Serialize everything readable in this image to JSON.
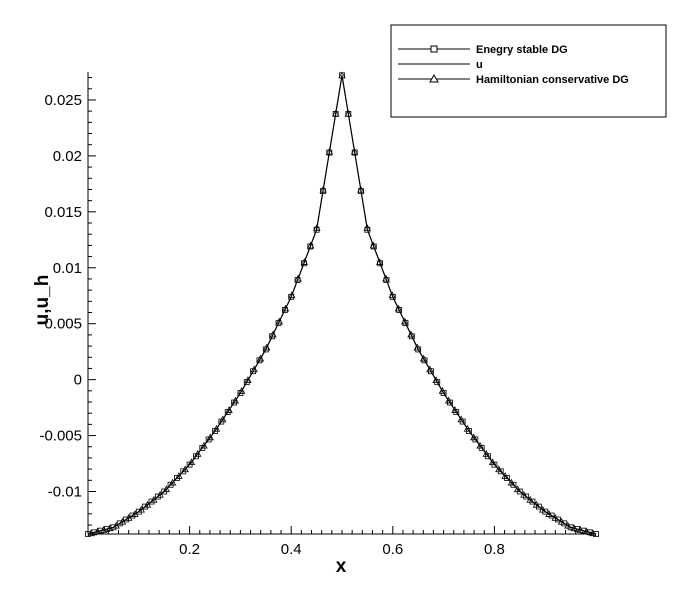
{
  "chart_data": {
    "type": "line",
    "xlabel": "x",
    "ylabel": "u,u_h",
    "xlim": [
      0,
      1
    ],
    "ylim": [
      -0.0138,
      0.0275
    ],
    "x_ticks": [
      {
        "value": 0.2,
        "label": "0.2"
      },
      {
        "value": 0.4,
        "label": "0.4"
      },
      {
        "value": 0.6,
        "label": "0.6"
      },
      {
        "value": 0.8,
        "label": "0.8"
      }
    ],
    "y_ticks": [
      {
        "value": 0.025,
        "label": "0.025"
      },
      {
        "value": 0.02,
        "label": "0.02"
      },
      {
        "value": 0.015,
        "label": "0.015"
      },
      {
        "value": 0.01,
        "label": "0.01"
      },
      {
        "value": 0.005,
        "label": "0.005"
      },
      {
        "value": 0,
        "label": "0"
      },
      {
        "value": -0.005,
        "label": "-0.005"
      },
      {
        "value": -0.01,
        "label": "-0.01"
      }
    ],
    "legend_position": "top-right",
    "series": [
      {
        "name": "Enegry stable DG",
        "marker": "square",
        "color": "#000000"
      },
      {
        "name": "u",
        "marker": "none",
        "color": "#000000"
      },
      {
        "name": "Hamiltonian conservative DG",
        "marker": "triangle",
        "color": "#000000"
      }
    ],
    "x": [
      0,
      0.05,
      0.1,
      0.15,
      0.2,
      0.25,
      0.3,
      0.35,
      0.4,
      0.45,
      0.5,
      0.55,
      0.6,
      0.65,
      0.7,
      0.75,
      0.8,
      0.85,
      0.9,
      0.95,
      1.0
    ],
    "y": [
      -0.0138,
      -0.0132,
      -0.0118,
      -0.01,
      -0.0076,
      -0.0046,
      -0.0012,
      0.0027,
      0.0074,
      0.0134,
      0.0272,
      0.0134,
      0.0074,
      0.0027,
      -0.0012,
      -0.0046,
      -0.0076,
      -0.01,
      -0.0118,
      -0.0132,
      -0.0138
    ]
  }
}
